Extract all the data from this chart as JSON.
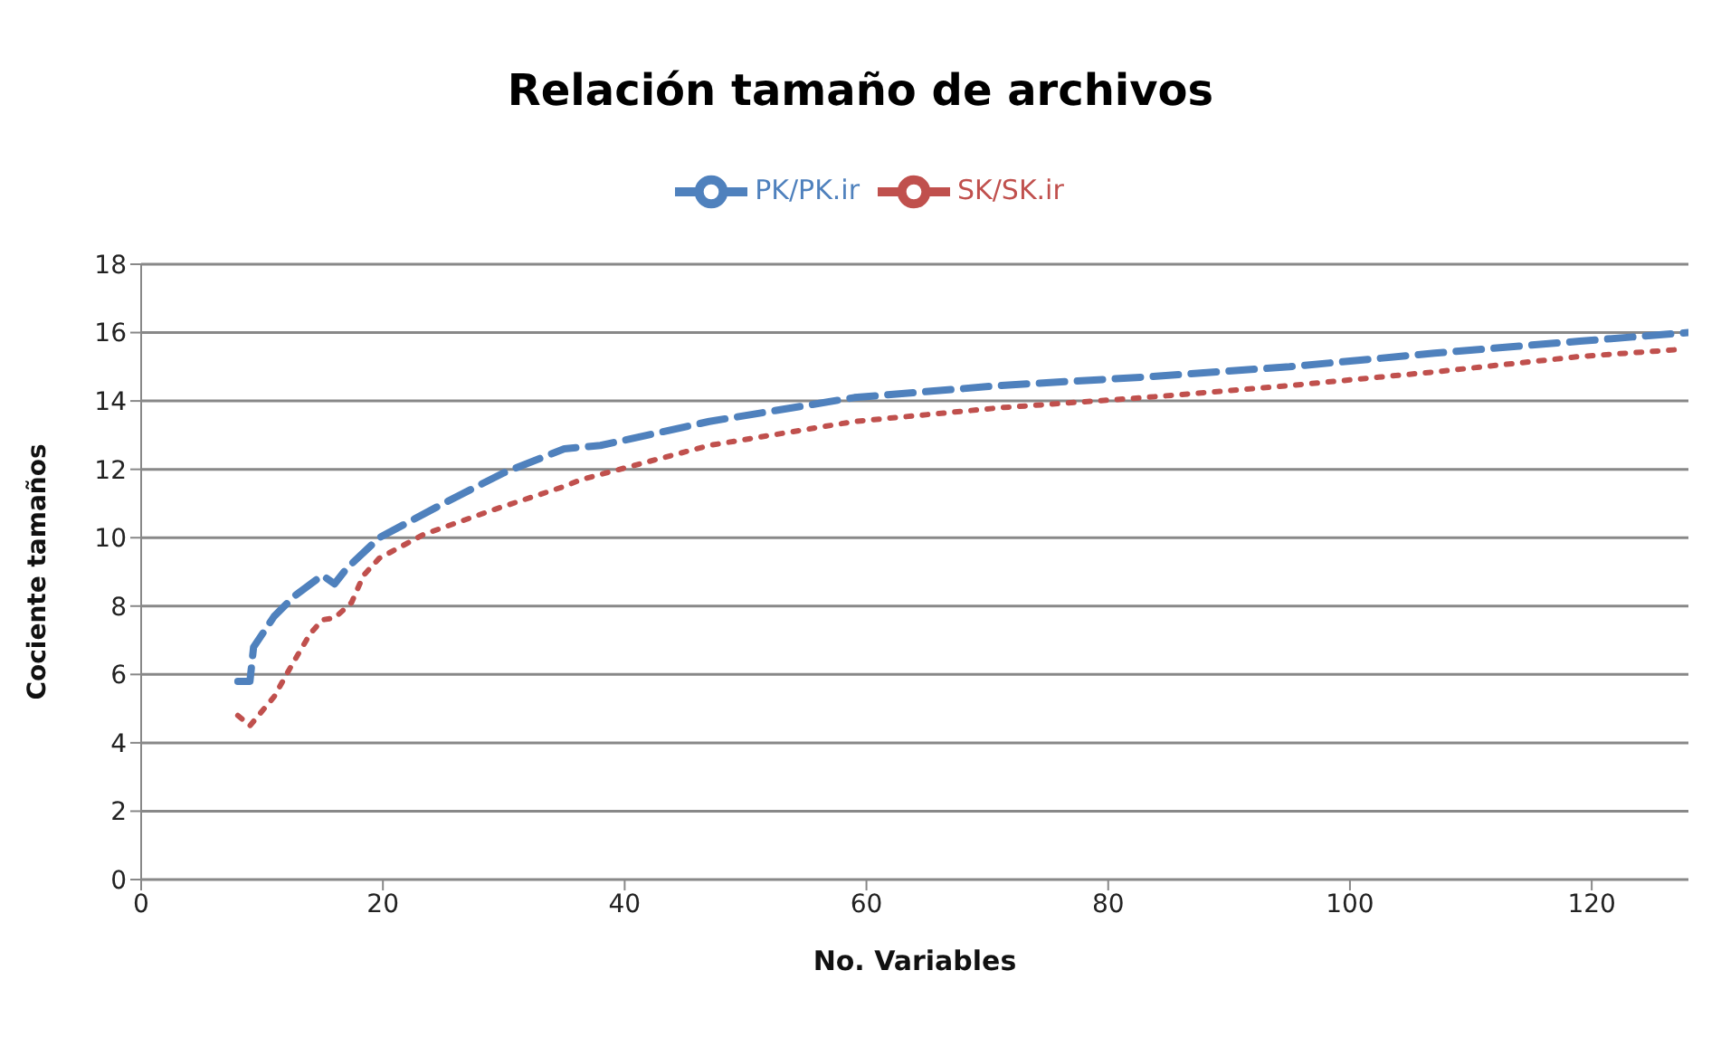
{
  "chart_data": {
    "type": "line",
    "title": "Relación tamaño de archivos",
    "xlabel": "No. Variables",
    "ylabel": "Cociente tamaños",
    "xlim": [
      0,
      128
    ],
    "xticks": [
      0,
      20,
      40,
      60,
      80,
      100,
      120
    ],
    "ylim": [
      0,
      18
    ],
    "yticks": [
      0,
      2,
      4,
      6,
      8,
      10,
      12,
      14,
      16,
      18
    ],
    "grid": "y",
    "legend": "top",
    "marker": "none",
    "series": [
      {
        "name": "PK/PK.ir",
        "color": "#4f81bd",
        "line_style": "dashed",
        "x": [
          8,
          9,
          9.3,
          11,
          12.7,
          15,
          16,
          17,
          19.7,
          25,
          30,
          35,
          38,
          47,
          59,
          71,
          83,
          95,
          107,
          119,
          128
        ],
        "values": [
          5.8,
          5.8,
          6.8,
          7.7,
          8.3,
          8.9,
          8.65,
          9.1,
          10,
          11,
          11.9,
          12.6,
          12.7,
          13.4,
          14.1,
          14.45,
          14.7,
          15,
          15.4,
          15.75,
          16
        ]
      },
      {
        "name": "SK/SK.ir",
        "color": "#c0504d",
        "line_style": "dotted",
        "x": [
          8,
          9,
          11,
          12.5,
          14,
          15,
          16,
          17.4,
          18.4,
          19.7,
          23.4,
          29,
          35,
          36.4,
          47,
          59,
          71,
          83,
          95,
          107,
          119,
          127
        ],
        "values": [
          4.8,
          4.5,
          5.35,
          6.3,
          7.2,
          7.6,
          7.65,
          8.1,
          8.9,
          9.4,
          10.1,
          10.8,
          11.5,
          11.7,
          12.7,
          13.4,
          13.8,
          14.1,
          14.45,
          14.85,
          15.3,
          15.5
        ]
      }
    ]
  }
}
